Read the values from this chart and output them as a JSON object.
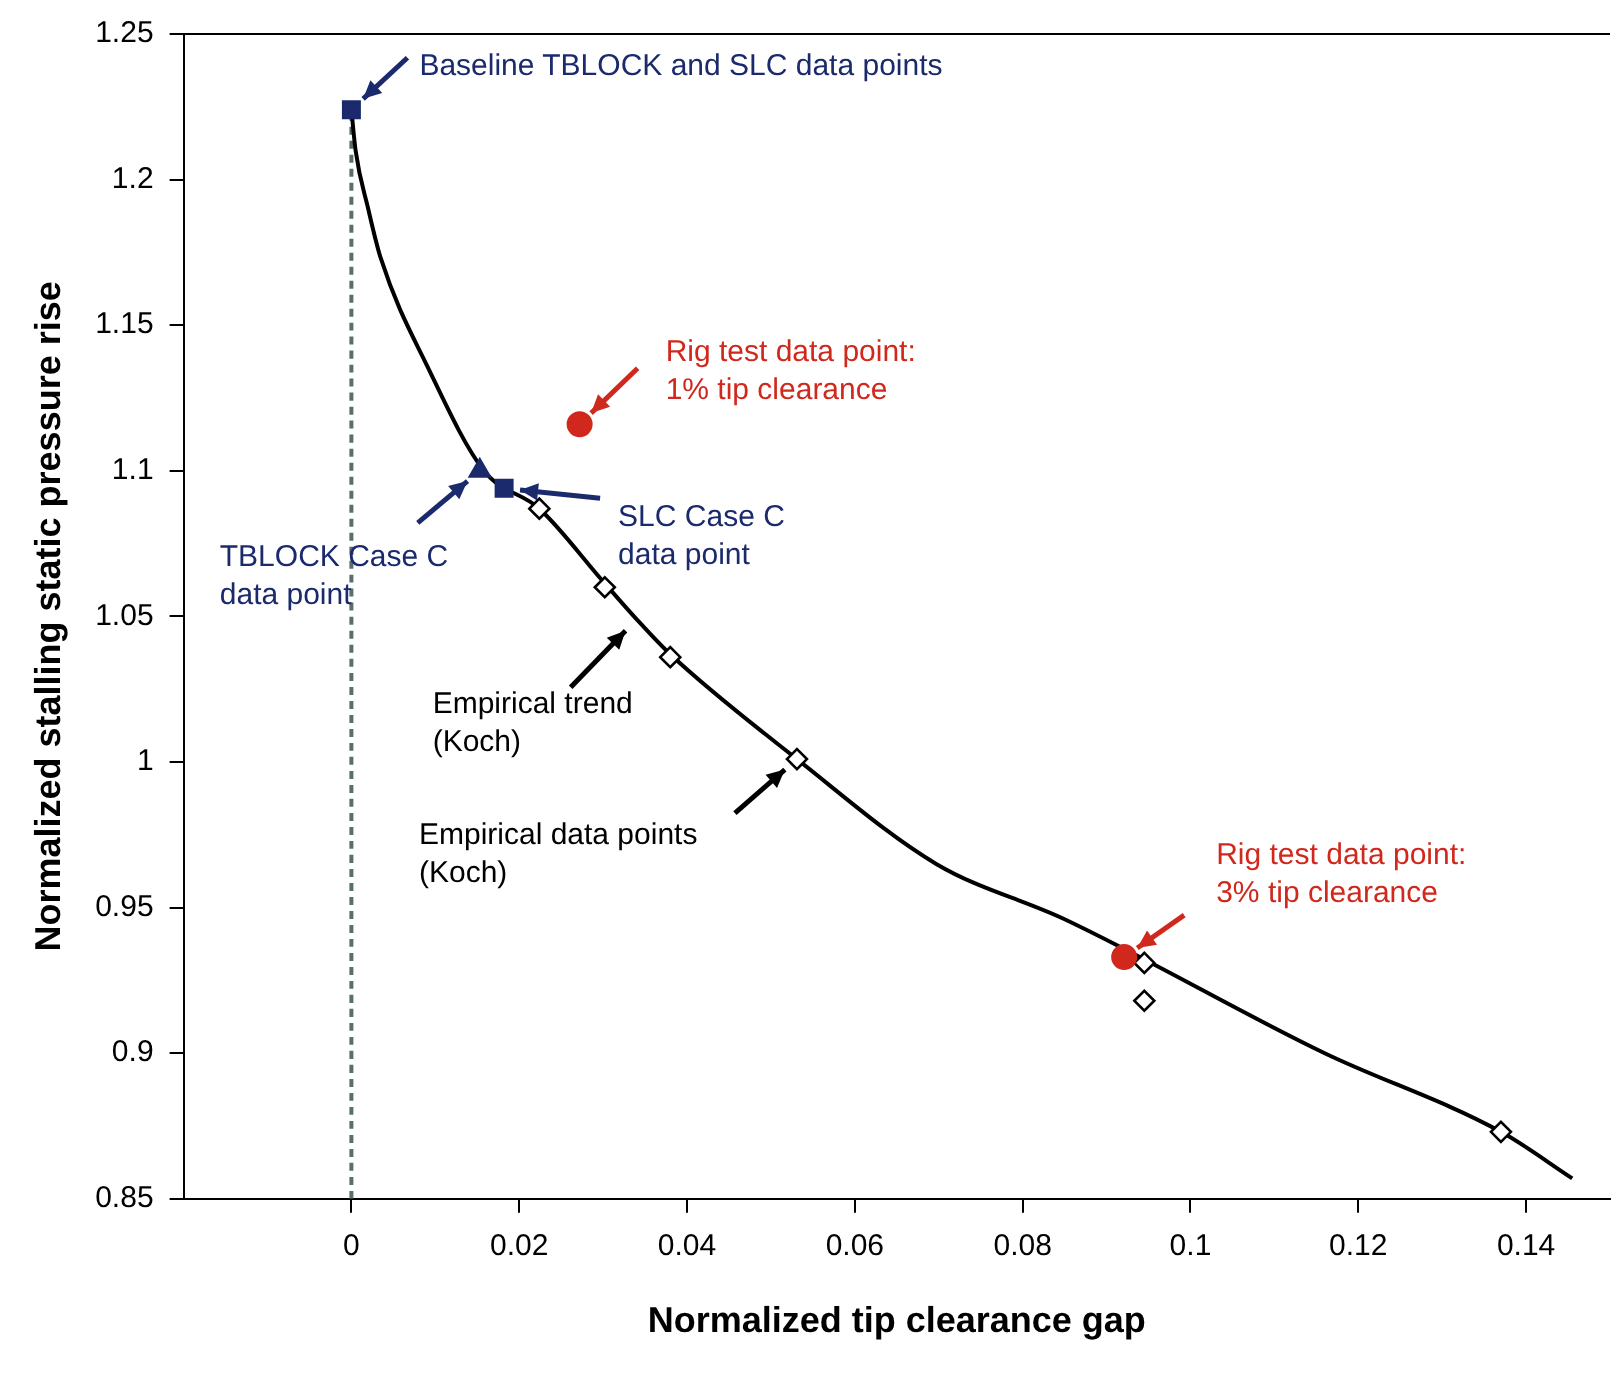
{
  "chart_data": {
    "type": "scatter",
    "xlabel": "Normalized tip clearance gap",
    "ylabel": "Normalized stalling static pressure rise",
    "xlim": [
      -0.02,
      0.15
    ],
    "xticks": [
      0,
      0.02,
      0.04,
      0.06,
      0.08,
      0.1,
      0.12,
      0.14
    ],
    "ylim": [
      0.85,
      1.25
    ],
    "yticks": [
      0.85,
      0.9,
      0.95,
      1,
      1.05,
      1.1,
      1.15,
      1.2,
      1.25
    ],
    "grid": false,
    "legend": false,
    "series": [
      {
        "type": "line",
        "color": "#5a6e6e",
        "line_style": "dashed",
        "marker": "none",
        "x": [
          0,
          0
        ],
        "values": [
          0.85,
          1.224
        ]
      },
      {
        "type": "line",
        "color": "#000000",
        "line_style": "solid",
        "marker": "none",
        "x": [
          0,
          0.0005,
          0.002,
          0.0035,
          0.0092,
          0.0158,
          0.0224,
          0.03,
          0.034,
          0.038,
          0.0531,
          0.0697,
          0.085,
          0.116,
          0.137,
          0.1455
        ],
        "values": [
          1.224,
          1.21,
          1.19,
          1.173,
          1.135,
          1.1,
          1.087,
          1.062,
          1.049,
          1.037,
          1.001,
          0.965,
          0.946,
          0.9,
          0.873,
          0.857
        ]
      },
      {
        "color": "#000000",
        "marker": "diamond",
        "x": [
          0.0224,
          0.0302,
          0.038,
          0.0531,
          0.0945,
          0.0945,
          0.137
        ],
        "values": [
          1.087,
          1.06,
          1.036,
          1.001,
          0.931,
          0.918,
          0.873
        ]
      },
      {
        "color": "#1a2a6c",
        "marker": "square",
        "x": [
          0,
          0.0182
        ],
        "values": [
          1.224,
          1.094
        ]
      },
      {
        "color": "#1a2a6c",
        "marker": "triangle",
        "x": [
          0.0153
        ],
        "values": [
          1.1
        ]
      },
      {
        "color": "#d0281c",
        "marker": "circle",
        "x": [
          0.0272,
          0.0921
        ],
        "values": [
          1.116,
          0.933
        ]
      }
    ],
    "annotations": [
      {
        "text": "Baseline TBLOCK and SLC data points",
        "x": 0,
        "y": 1.224
      },
      {
        "text": "TBLOCK Case C data point",
        "x": 0.0153,
        "y": 1.1
      },
      {
        "text": "SLC Case C data point",
        "x": 0.0182,
        "y": 1.094
      },
      {
        "text": "Rig test data point: 1% tip clearance",
        "x": 0.0272,
        "y": 1.116
      },
      {
        "text": "Empirical trend (Koch)",
        "x": 0.034,
        "y": 1.049
      },
      {
        "text": "Empirical data points (Koch)",
        "x": 0.0531,
        "y": 1.001
      },
      {
        "text": "Rig test data point: 3% tip clearance",
        "x": 0.0921,
        "y": 0.933
      }
    ]
  }
}
